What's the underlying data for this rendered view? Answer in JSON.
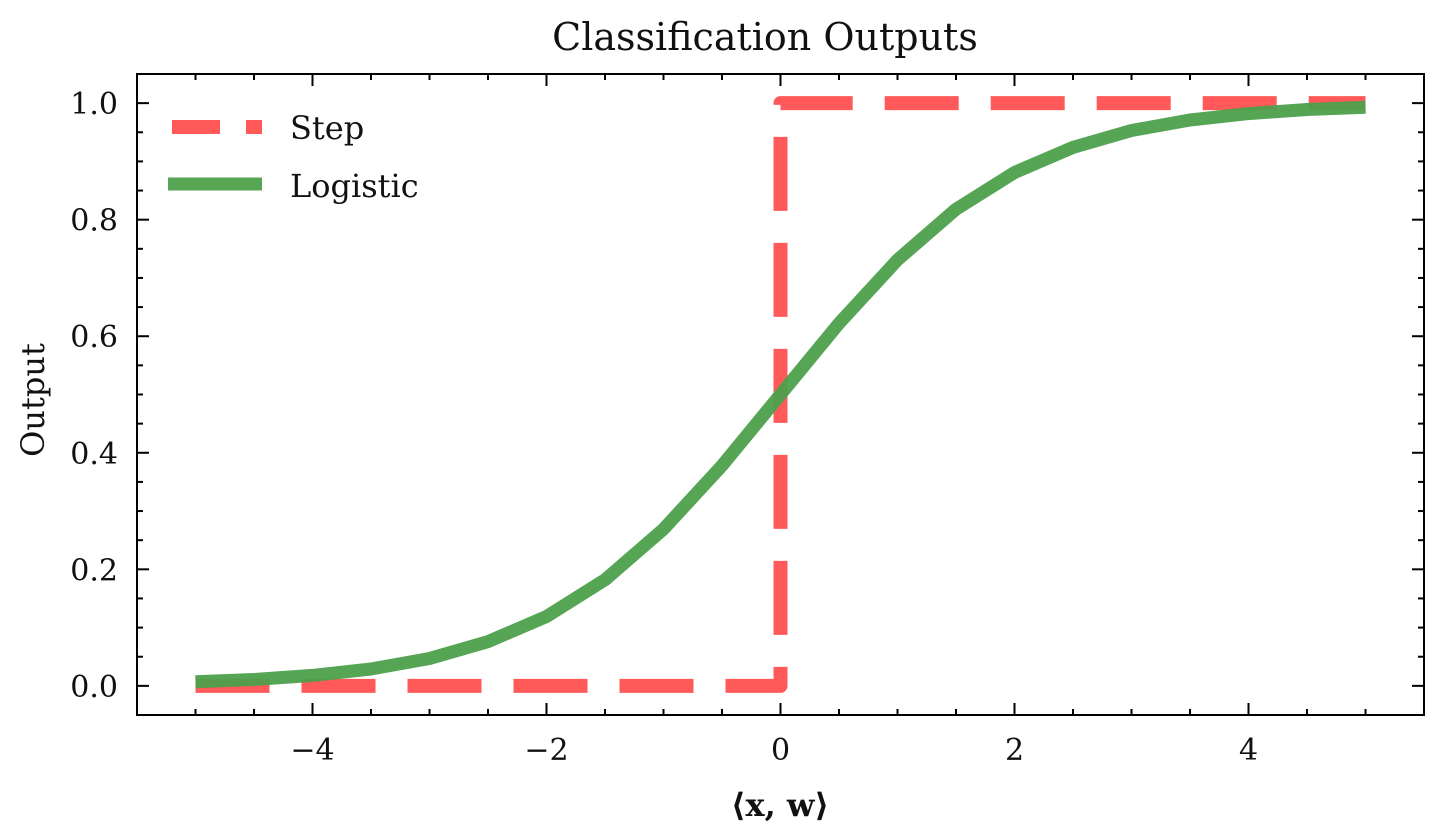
{
  "chart_data": {
    "type": "line",
    "title": "Classification Outputs",
    "xlabel": "⟨x, w⟩",
    "ylabel": "Output",
    "xlim": [
      -5.5,
      5.5
    ],
    "ylim": [
      -0.05,
      1.05
    ],
    "xticks": [
      -4,
      -2,
      0,
      2,
      4
    ],
    "xtick_labels": [
      "−4",
      "−2",
      "0",
      "2",
      "4"
    ],
    "yticks": [
      0.0,
      0.2,
      0.4,
      0.6,
      0.8,
      1.0
    ],
    "ytick_labels": [
      "0.0",
      "0.2",
      "0.4",
      "0.6",
      "0.8",
      "1.0"
    ],
    "legend_position": "top-left",
    "grid": false,
    "series": [
      {
        "name": "Step",
        "color": "#ff5050",
        "style": "dashed",
        "x": [
          -5,
          0,
          0,
          5
        ],
        "y": [
          0,
          0,
          1,
          1
        ]
      },
      {
        "name": "Logistic",
        "color": "#4ca04c",
        "style": "solid",
        "x": [
          -5,
          -4.5,
          -4,
          -3.5,
          -3,
          -2.5,
          -2,
          -1.5,
          -1,
          -0.5,
          0,
          0.5,
          1,
          1.5,
          2,
          2.5,
          3,
          3.5,
          4,
          4.5,
          5
        ],
        "y": [
          0.007,
          0.011,
          0.018,
          0.029,
          0.047,
          0.076,
          0.119,
          0.182,
          0.269,
          0.378,
          0.5,
          0.622,
          0.731,
          0.818,
          0.881,
          0.924,
          0.953,
          0.971,
          0.982,
          0.989,
          0.993
        ]
      }
    ]
  }
}
